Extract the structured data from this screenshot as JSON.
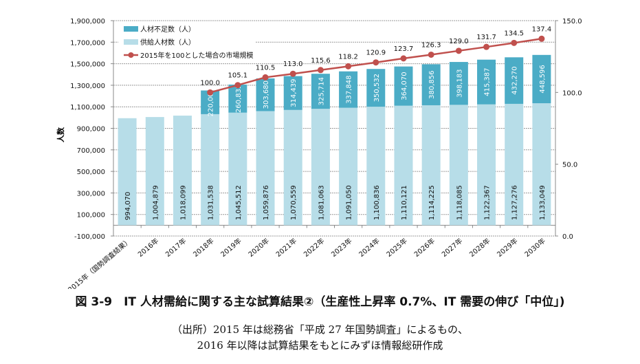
{
  "chart_data": {
    "type": "bar",
    "stacked": true,
    "categories": [
      "2015年（国勢調査結果）",
      "2016年",
      "2017年",
      "2018年",
      "2019年",
      "2020年",
      "2021年",
      "2022年",
      "2023年",
      "2024年",
      "2025年",
      "2026年",
      "2027年",
      "2028年",
      "2029年",
      "2030年"
    ],
    "series": [
      {
        "name": "供給人材数（人）",
        "axis": "left",
        "color": "#b7dde8",
        "values": [
          994070,
          1004879,
          1018099,
          1031538,
          1045512,
          1059876,
          1070559,
          1081063,
          1091050,
          1100836,
          1110121,
          1114225,
          1118085,
          1122367,
          1127276,
          1133049
        ],
        "labels": [
          "994,070",
          "1,004,879",
          "1,018,099",
          "1,031,538",
          "1,045,512",
          "1,059,876",
          "1,070,559",
          "1,081,063",
          "1,091,050",
          "1,100,836",
          "1,110,121",
          "1,114,225",
          "1,118,085",
          "1,122,367",
          "1,127,276",
          "1,133,049"
        ]
      },
      {
        "name": "人材不足数（人）",
        "axis": "left",
        "color": "#4bacc6",
        "values": [
          null,
          null,
          null,
          220000,
          260835,
          303680,
          314439,
          325714,
          337848,
          350532,
          364070,
          380856,
          398183,
          415387,
          432270,
          448596
        ],
        "labels": [
          null,
          null,
          null,
          "220,000",
          "260,835",
          "303,680",
          "314,439",
          "325,714",
          "337,848",
          "350,532",
          "364,070",
          "380,856",
          "398,183",
          "415,387",
          "432,270",
          "448,596"
        ]
      },
      {
        "name": "2015年を100とした場合の市場規模",
        "type": "line",
        "axis": "right",
        "color": "#c0504d",
        "values": [
          null,
          null,
          null,
          100.0,
          105.1,
          110.5,
          113.0,
          115.6,
          118.2,
          120.9,
          123.7,
          126.3,
          129.0,
          131.7,
          134.5,
          137.4
        ],
        "labels": [
          null,
          null,
          null,
          "100.0",
          "105.1",
          "110.5",
          "113.0",
          "115.6",
          "118.2",
          "120.9",
          "123.7",
          "126.3",
          "129.0",
          "131.7",
          "134.5",
          "137.4"
        ]
      }
    ],
    "legend_order": [
      1,
      0,
      2
    ],
    "legend_position": "top-left",
    "ylabel": "人数",
    "ylim": [
      -100000,
      1900000
    ],
    "yticks": [
      "1,900,000",
      "1,700,000",
      "1,500,000",
      "1,300,000",
      "1,100,000",
      "900,000",
      "700,000",
      "500,000",
      "300,000",
      "100,000",
      "-100,000"
    ],
    "ytick_values": [
      1900000,
      1700000,
      1500000,
      1300000,
      1100000,
      900000,
      700000,
      500000,
      300000,
      100000,
      -100000
    ],
    "y2lim": [
      0,
      150
    ],
    "y2ticks": [
      "150.0",
      "100.0",
      "50.0",
      "0.0"
    ],
    "y2tick_values": [
      150,
      100,
      50,
      0
    ],
    "grid": true
  },
  "caption": {
    "title": "図 3-9　IT 人材需給に関する主な試算結果②（生産性上昇率 0.7%、IT 需要の伸び「中位」)",
    "source_line1": "（出所）2015 年は総務省「平成 27 年国勢調査」によるもの、",
    "source_line2": "2016 年以降は試算結果をもとにみずほ情報総研作成"
  }
}
